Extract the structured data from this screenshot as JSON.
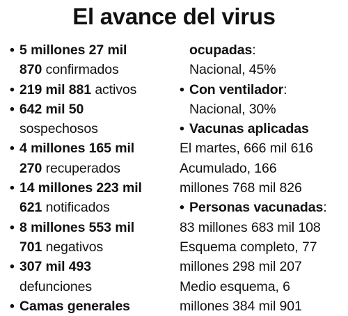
{
  "title": "El avance del virus",
  "left_column": {
    "confirmados": {
      "bold_a": "5 millones 27 mil",
      "bold_b": "870",
      "label": "confirmados"
    },
    "activos": {
      "bold": "219 mil 881",
      "label": "activos"
    },
    "sospechosos": {
      "bold": "642 mil 50",
      "label": "sospechosos"
    },
    "recuperados": {
      "bold_a": "4 millones 165 mil",
      "bold_b": "270",
      "label": "recuperados"
    },
    "notificados": {
      "bold_a": "14 millones 223 mil",
      "bold_b": "621",
      "label": "notificados"
    },
    "negativos": {
      "bold_a": "8 millones 553 mil",
      "bold_b": "701",
      "label": "negativos"
    },
    "defunciones": {
      "bold": "307 mil 493",
      "label": "defunciones"
    },
    "camas": {
      "heading_a": "Camas generales"
    }
  },
  "right_column": {
    "camas": {
      "heading_b": "ocupadas",
      "colon": ":",
      "value": "Nacional, 45%"
    },
    "ventilador": {
      "heading": "Con ventilador",
      "colon": ":",
      "value": "Nacional, 30%"
    },
    "vacunas": {
      "heading": "Vacunas aplicadas",
      "line1": "El martes, 666 mil 616",
      "line2": "Acumulado, 166",
      "line3": "millones 768 mil 826"
    },
    "personas": {
      "heading": "Personas vacunadas",
      "colon": ":",
      "line1": "83 millones 683 mil 108",
      "line2": "Esquema completo, 77",
      "line3": "millones 298 mil 207",
      "line4": "Medio esquema, 6",
      "line5": "millones 384 mil 901"
    }
  }
}
